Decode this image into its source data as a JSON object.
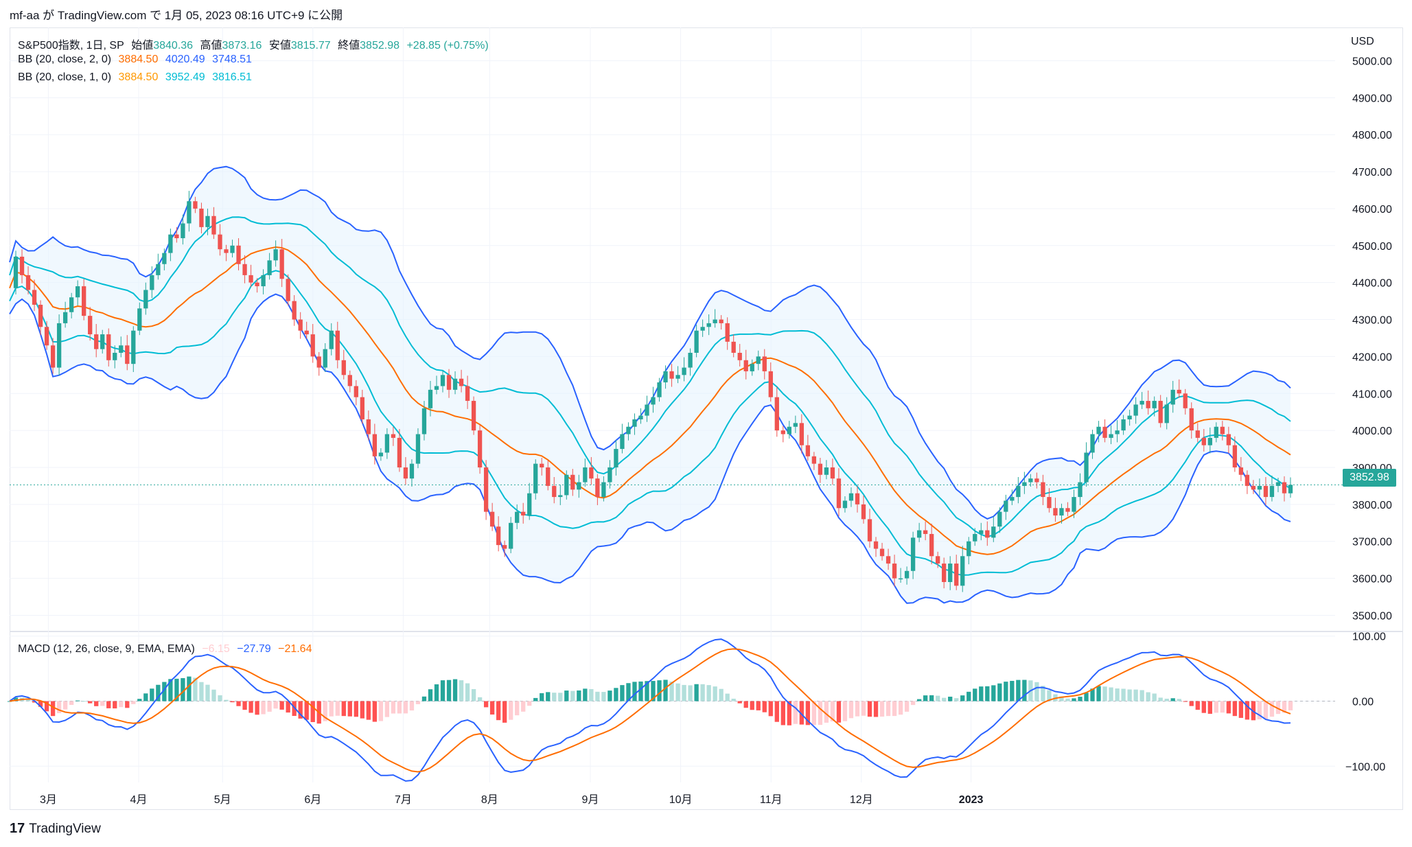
{
  "header": {
    "text": "mf-aa が TradingView.com で 1月 05, 2023 08:16 UTC+9 に公開"
  },
  "legend": {
    "symbol": "S&P500指数, 1日, SP",
    "open_label": "始値",
    "open": "3840.36",
    "high_label": "高値",
    "high": "3873.16",
    "low_label": "安値",
    "low": "3815.77",
    "close_label": "終値",
    "close": "3852.98",
    "change": "+28.85 (+0.75%)",
    "bb2_label": "BB (20, close, 2, 0)",
    "bb2_mid": "3884.50",
    "bb2_up": "4020.49",
    "bb2_low": "3748.51",
    "bb1_label": "BB (20, close, 1, 0)",
    "bb1_mid": "3884.50",
    "bb1_up": "3952.49",
    "bb1_low": "3816.51",
    "macd_label": "MACD (12, 26, close, 9, EMA, EMA)",
    "macd_hist": "−6.15",
    "macd_line": "−27.79",
    "macd_signal": "−21.64"
  },
  "price_tag": "3852.98",
  "currency": "USD",
  "footer": {
    "brand": "TradingView",
    "logo_text": "17"
  },
  "colors": {
    "up": "#26a69a",
    "down": "#ef5350",
    "bb2": "#2962ff",
    "bb1": "#00bcd4",
    "mid": "#ff6d00",
    "macd": "#2962ff",
    "signal": "#ff6d00",
    "fill": "#e3f2fd"
  },
  "chart_data": {
    "type": "candlestick",
    "title": "S&P500指数, 1日, SP",
    "x_ticks": [
      "3月",
      "4月",
      "5月",
      "6月",
      "7月",
      "8月",
      "9月",
      "10月",
      "11月",
      "12月",
      "2023"
    ],
    "price_ticks": [
      3500,
      3600,
      3700,
      3800,
      3900,
      4000,
      4100,
      4200,
      4300,
      4400,
      4500,
      4600,
      4700,
      4800,
      4900,
      5000
    ],
    "price_ylim": [
      3460,
      5090
    ],
    "macd_ticks": [
      100,
      0,
      -100
    ],
    "macd_ylim": [
      -125,
      105
    ],
    "closes": [
      4385,
      4470,
      4420,
      4380,
      4340,
      4280,
      4230,
      4170,
      4290,
      4320,
      4360,
      4390,
      4310,
      4260,
      4220,
      4260,
      4190,
      4210,
      4230,
      4180,
      4270,
      4330,
      4380,
      4420,
      4450,
      4480,
      4530,
      4520,
      4560,
      4620,
      4600,
      4550,
      4580,
      4530,
      4490,
      4480,
      4500,
      4450,
      4420,
      4400,
      4390,
      4420,
      4460,
      4490,
      4410,
      4350,
      4300,
      4270,
      4260,
      4200,
      4170,
      4220,
      4270,
      4190,
      4150,
      4120,
      4090,
      4030,
      3990,
      3930,
      3940,
      3990,
      3980,
      3900,
      3870,
      3910,
      3990,
      4060,
      4110,
      4120,
      4150,
      4110,
      4140,
      4120,
      4080,
      4000,
      3900,
      3780,
      3740,
      3690,
      3680,
      3750,
      3780,
      3770,
      3830,
      3910,
      3900,
      3850,
      3820,
      3825,
      3880,
      3840,
      3860,
      3900,
      3870,
      3820,
      3860,
      3900,
      3950,
      3990,
      4010,
      4030,
      4040,
      4070,
      4090,
      4130,
      4160,
      4140,
      4150,
      4170,
      4210,
      4270,
      4280,
      4290,
      4300,
      4290,
      4240,
      4210,
      4190,
      4160,
      4180,
      4200,
      4160,
      4090,
      4000,
      3990,
      4010,
      4020,
      3960,
      3930,
      3910,
      3880,
      3900,
      3870,
      3790,
      3810,
      3830,
      3800,
      3760,
      3700,
      3680,
      3660,
      3640,
      3600,
      3600,
      3620,
      3710,
      3730,
      3720,
      3660,
      3640,
      3590,
      3640,
      3580,
      3660,
      3700,
      3720,
      3730,
      3710,
      3740,
      3780,
      3810,
      3820,
      3850,
      3860,
      3870,
      3860,
      3820,
      3790,
      3770,
      3790,
      3780,
      3820,
      3860,
      3940,
      3990,
      4010,
      3980,
      3990,
      4000,
      4030,
      4040,
      4070,
      4080,
      4060,
      4080,
      4020,
      4070,
      4110,
      4100,
      4060,
      4000,
      3980,
      3960,
      3980,
      4010,
      3990,
      3960,
      3900,
      3880,
      3850,
      3840,
      3850,
      3820,
      3850,
      3860,
      3830,
      3852.98
    ],
    "bb2": {
      "mid": "3884.50",
      "upper": "4020.49",
      "lower": "3748.51"
    },
    "bb1": {
      "mid": "3884.50",
      "upper": "3952.49",
      "lower": "3816.51"
    },
    "macd": {
      "histogram": -6.15,
      "macd": -27.79,
      "signal": -21.64
    }
  }
}
